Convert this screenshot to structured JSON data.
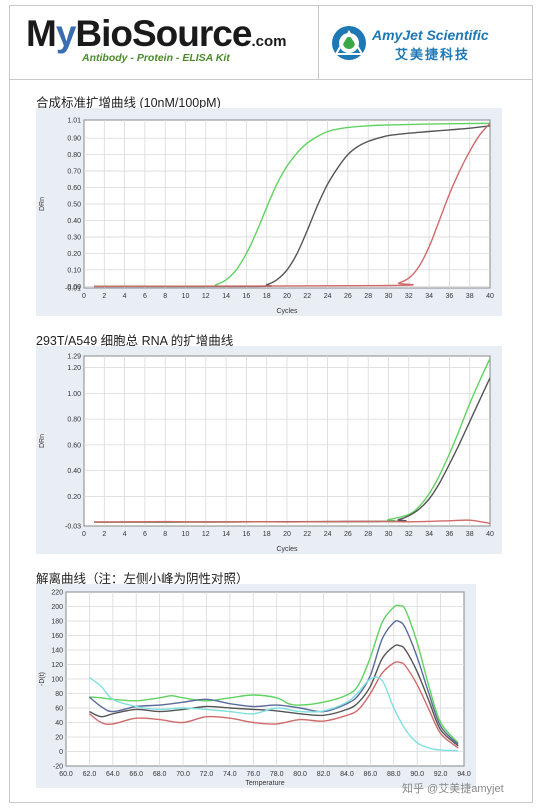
{
  "header": {
    "logo_left_1": "M",
    "logo_left_2": "y",
    "logo_left_3": "BioSource",
    "logo_left_suffix": ".com",
    "logo_tagline": "Antibody - Protein - ELISA Kit",
    "logo_right_name": "AmyJet Scientific",
    "logo_right_cn": "艾美捷科技"
  },
  "footer": "知乎 @艾美捷amyjet",
  "colors": {
    "green": "#5fd35f",
    "dark": "#555555",
    "red": "#d06a6a",
    "blue": "#5a6a9a",
    "cyan": "#7fe0e0",
    "grid": "#d9d9d9",
    "plot_bg": "#ffffff",
    "panel_bg": "#e9eef5"
  },
  "chart_data": [
    {
      "type": "line",
      "title": "合成标准扩增曲线 (10nM/100pM)",
      "xlabel": "Cycles",
      "ylabel": "DRn",
      "xlim": [
        0,
        40
      ],
      "ylim": [
        -0.01,
        1.01
      ],
      "xticks": [
        "0",
        "2",
        "4",
        "6",
        "8",
        "10",
        "12",
        "14",
        "16",
        "18",
        "20",
        "22",
        "24",
        "26",
        "28",
        "30",
        "32",
        "34",
        "36",
        "38",
        "40"
      ],
      "yticks": [
        "1.01",
        "0.90",
        "0.80",
        "0.70",
        "0.60",
        "0.50",
        "0.40",
        "0.30",
        "0.20",
        "0.10",
        "0.00",
        "-0.01"
      ],
      "grid": true,
      "series": [
        {
          "color": "green",
          "x": [
            1,
            12,
            13,
            14,
            15,
            16,
            17,
            18,
            19,
            20,
            21,
            22,
            23,
            24,
            25,
            26,
            28,
            30,
            34,
            40
          ],
          "y": [
            0,
            0,
            0.01,
            0.04,
            0.1,
            0.2,
            0.33,
            0.48,
            0.62,
            0.73,
            0.81,
            0.87,
            0.91,
            0.94,
            0.955,
            0.965,
            0.975,
            0.98,
            0.985,
            0.99
          ]
        },
        {
          "color": "dark",
          "x": [
            1,
            17,
            18,
            19,
            20,
            21,
            22,
            23,
            24,
            25,
            26,
            27,
            28,
            29,
            30,
            32,
            34,
            36,
            38,
            40
          ],
          "y": [
            0,
            0,
            0.01,
            0.04,
            0.1,
            0.2,
            0.34,
            0.49,
            0.62,
            0.72,
            0.8,
            0.85,
            0.88,
            0.9,
            0.915,
            0.93,
            0.94,
            0.95,
            0.96,
            0.975
          ]
        },
        {
          "color": "red",
          "x": [
            1,
            30,
            31,
            32,
            33,
            34,
            35,
            36,
            37,
            38,
            39,
            40
          ],
          "y": [
            0,
            0.005,
            0.02,
            0.05,
            0.12,
            0.24,
            0.4,
            0.56,
            0.7,
            0.82,
            0.92,
            0.99
          ]
        }
      ]
    },
    {
      "type": "line",
      "title": "293T/A549 细胞总 RNA 的扩增曲线",
      "xlabel": "Cycles",
      "ylabel": "DRn",
      "xlim": [
        0,
        40
      ],
      "ylim": [
        -0.03,
        1.29
      ],
      "xticks": [
        "0",
        "2",
        "4",
        "6",
        "8",
        "10",
        "12",
        "14",
        "16",
        "18",
        "20",
        "22",
        "24",
        "26",
        "28",
        "30",
        "32",
        "34",
        "36",
        "38",
        "40"
      ],
      "yticks": [
        "1.29",
        "1.20",
        "1.00",
        "0.80",
        "0.60",
        "0.40",
        "0.20",
        "-0.03"
      ],
      "grid": true,
      "series": [
        {
          "color": "green",
          "x": [
            1,
            28,
            30,
            32,
            33,
            34,
            35,
            36,
            37,
            38,
            39,
            40
          ],
          "y": [
            0,
            0.005,
            0.02,
            0.06,
            0.12,
            0.22,
            0.36,
            0.53,
            0.72,
            0.92,
            1.1,
            1.27
          ]
        },
        {
          "color": "dark",
          "x": [
            1,
            29,
            31,
            32,
            33,
            34,
            35,
            36,
            37,
            38,
            39,
            40
          ],
          "y": [
            0,
            0.005,
            0.02,
            0.05,
            0.1,
            0.18,
            0.3,
            0.45,
            0.61,
            0.78,
            0.95,
            1.12
          ]
        },
        {
          "color": "red",
          "x": [
            1,
            4,
            8,
            12,
            16,
            20,
            24,
            28,
            32,
            36,
            38,
            40
          ],
          "y": [
            0,
            0.002,
            0.004,
            0.001,
            0.003,
            0.002,
            0.004,
            0.006,
            0.003,
            0.01,
            0.015,
            -0.01
          ]
        }
      ]
    },
    {
      "type": "line",
      "title": "解离曲线（注：左侧小峰为阴性对照）",
      "xlabel": "Temperature",
      "ylabel": "-D(t)",
      "xlim": [
        60,
        94
      ],
      "ylim": [
        -20,
        220
      ],
      "xticks": [
        "60.0",
        "62.0",
        "64.0",
        "66.0",
        "68.0",
        "70.0",
        "72.0",
        "74.0",
        "76.0",
        "78.0",
        "80.0",
        "82.0",
        "84.0",
        "86.0",
        "88.0",
        "90.0",
        "92.0",
        "94.0"
      ],
      "yticks": [
        "220",
        "200",
        "180",
        "160",
        "140",
        "120",
        "100",
        "80",
        "60",
        "40",
        "20",
        "0",
        "-20"
      ],
      "grid": true,
      "series": [
        {
          "color": "green",
          "x": [
            62,
            63,
            64,
            66,
            68,
            69,
            70,
            72,
            74,
            76,
            78,
            79,
            80,
            82,
            84,
            85,
            86,
            87,
            88,
            88.5,
            89,
            90,
            91,
            92,
            93.5
          ],
          "y": [
            75,
            74,
            72,
            70,
            74,
            77,
            74,
            70,
            74,
            78,
            74,
            66,
            64,
            68,
            78,
            92,
            130,
            178,
            199,
            201,
            195,
            150,
            90,
            40,
            12
          ]
        },
        {
          "color": "blue",
          "x": [
            62,
            63,
            64,
            66,
            68,
            70,
            72,
            74,
            76,
            78,
            80,
            82,
            84,
            85,
            86,
            87,
            88,
            88.5,
            89,
            90,
            91,
            92,
            93.5
          ],
          "y": [
            75,
            62,
            55,
            62,
            64,
            68,
            72,
            66,
            62,
            64,
            60,
            55,
            66,
            78,
            105,
            155,
            178,
            179,
            170,
            130,
            80,
            35,
            10
          ]
        },
        {
          "color": "dark",
          "x": [
            62,
            63,
            64,
            66,
            68,
            70,
            72,
            74,
            76,
            78,
            80,
            82,
            84,
            85,
            86,
            87,
            88,
            88.5,
            89,
            90,
            91,
            92,
            93.5
          ],
          "y": [
            55,
            48,
            52,
            58,
            55,
            58,
            62,
            60,
            58,
            56,
            52,
            50,
            58,
            68,
            90,
            128,
            145,
            146,
            140,
            110,
            70,
            30,
            8
          ]
        },
        {
          "color": "red",
          "x": [
            62,
            63,
            64,
            66,
            68,
            70,
            72,
            74,
            76,
            78,
            80,
            82,
            84,
            85,
            86,
            87,
            88,
            88.5,
            89,
            90,
            91,
            92,
            93.5
          ],
          "y": [
            52,
            40,
            38,
            46,
            44,
            40,
            48,
            46,
            40,
            38,
            44,
            42,
            50,
            58,
            80,
            108,
            122,
            123,
            118,
            92,
            58,
            25,
            5
          ]
        },
        {
          "color": "cyan",
          "x": [
            62,
            63,
            64,
            66,
            68,
            70,
            72,
            74,
            76,
            78,
            80,
            82,
            84,
            85,
            86,
            87,
            88,
            89,
            90,
            91,
            92,
            93.5
          ],
          "y": [
            102,
            90,
            72,
            62,
            58,
            60,
            58,
            55,
            52,
            60,
            55,
            56,
            68,
            82,
            100,
            98,
            60,
            30,
            12,
            5,
            2,
            1
          ]
        }
      ]
    }
  ]
}
